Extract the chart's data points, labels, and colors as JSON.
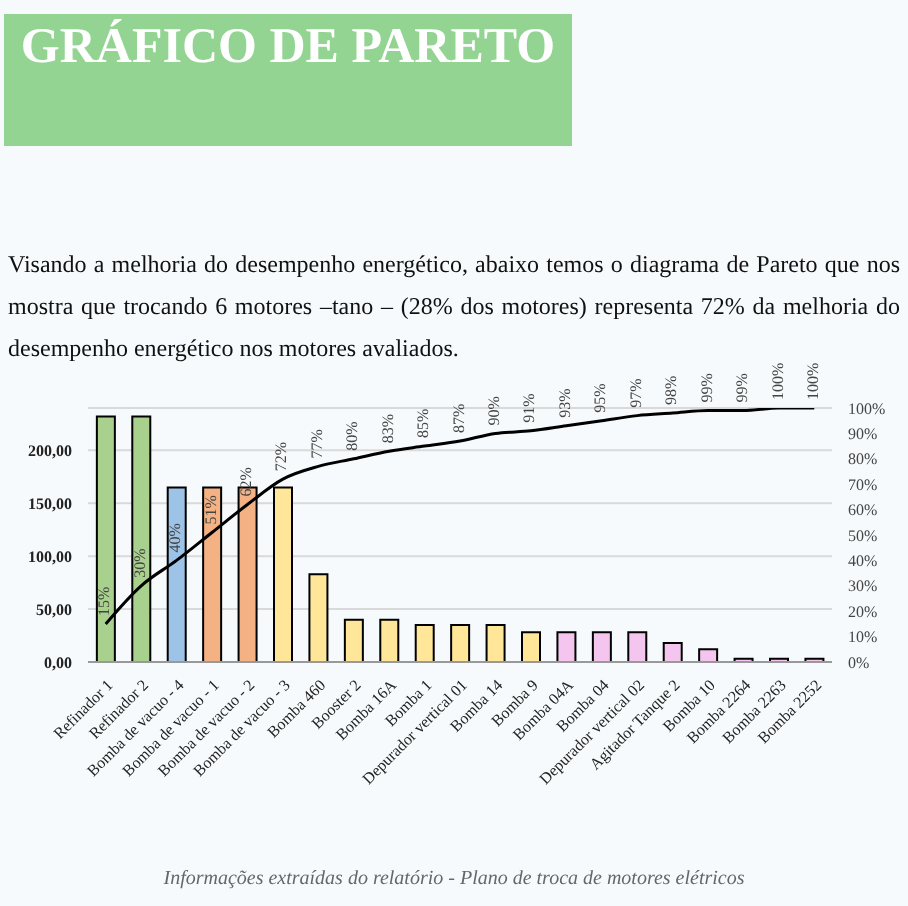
{
  "chart_data": {
    "type": "bar",
    "title": "GRÁFICO DE PARETO",
    "subtitle": "Visando a melhoria do desempenho energético, abaixo temos o diagrama de Pareto que nos mostra que trocando 6 motores –tano – (28% dos motores) representa 72% da melhoria do desempenho energético nos motores avaliados.",
    "categories": [
      "Refinador 1",
      "Refinador 2",
      "Bomba de vacuo - 4",
      "Bomba de vacuo - 1",
      "Bomba de vacuo - 2",
      "Bomba de vacuo - 3",
      "Bomba 460",
      "Booster 2",
      "Bomba 16A",
      "Bomba 1",
      "Depurador vertical 01",
      "Bomba 14",
      "Bomba 9",
      "Bomba 04A",
      "Bomba 04",
      "Depurador vertical 02",
      "Agitador Tanque 2",
      "Bomba 10",
      "Bomba 2264",
      "Bomba 2263",
      "Bomba 2252"
    ],
    "series": [
      {
        "values": [
          232,
          232,
          165,
          165,
          165,
          165,
          83,
          40,
          40,
          35,
          35,
          35,
          28,
          28,
          28,
          28,
          18,
          12,
          3,
          3,
          3
        ],
        "colors": [
          "#a9d18e",
          "#a9d18e",
          "#9dc3e6",
          "#f4b183",
          "#f4b183",
          "#ffe699",
          "#ffe699",
          "#ffe699",
          "#ffe699",
          "#ffe699",
          "#ffe699",
          "#ffe699",
          "#ffe699",
          "#f4c6ef",
          "#f4c6ef",
          "#f4c6ef",
          "#f4c6ef",
          "#f4c6ef",
          "#f4c6ef",
          "#f4c6ef",
          "#f4c6ef"
        ]
      },
      {
        "type": "line",
        "axis": "y2",
        "color": "#000000",
        "values": [
          15,
          30,
          40,
          51,
          62,
          72,
          77,
          80,
          83,
          85,
          87,
          90,
          91,
          93,
          95,
          97,
          98,
          99,
          99,
          100,
          100
        ],
        "value_labels": [
          "15%",
          "30%",
          "40%",
          "51%",
          "62%",
          "72%",
          "77%",
          "80%",
          "83%",
          "85%",
          "87%",
          "90%",
          "91%",
          "93%",
          "95%",
          "97%",
          "98%",
          "99%",
          "99%",
          "100%",
          "100%"
        ]
      }
    ],
    "ylim": [
      0,
      240
    ],
    "yticks": [
      {
        "value": 0,
        "label": "0,00"
      },
      {
        "value": 50,
        "label": "50,00"
      },
      {
        "value": 100,
        "label": "100,00"
      },
      {
        "value": 150,
        "label": "150,00"
      },
      {
        "value": 200,
        "label": "200,00"
      }
    ],
    "y2lim": [
      0,
      100
    ],
    "y2ticks": [
      {
        "value": 0,
        "label": "0%"
      },
      {
        "value": 10,
        "label": "10%"
      },
      {
        "value": 20,
        "label": "20%"
      },
      {
        "value": 30,
        "label": "30%"
      },
      {
        "value": 40,
        "label": "40%"
      },
      {
        "value": 50,
        "label": "50%"
      },
      {
        "value": 60,
        "label": "60%"
      },
      {
        "value": 70,
        "label": "70%"
      },
      {
        "value": 80,
        "label": "80%"
      },
      {
        "value": 90,
        "label": "90%"
      },
      {
        "value": 100,
        "label": "100%"
      }
    ],
    "grid": "y",
    "legend": false,
    "marker": "none",
    "annotations": [
      "Informações extraídas do relatório - Plano de troca de motores elétricos"
    ]
  }
}
